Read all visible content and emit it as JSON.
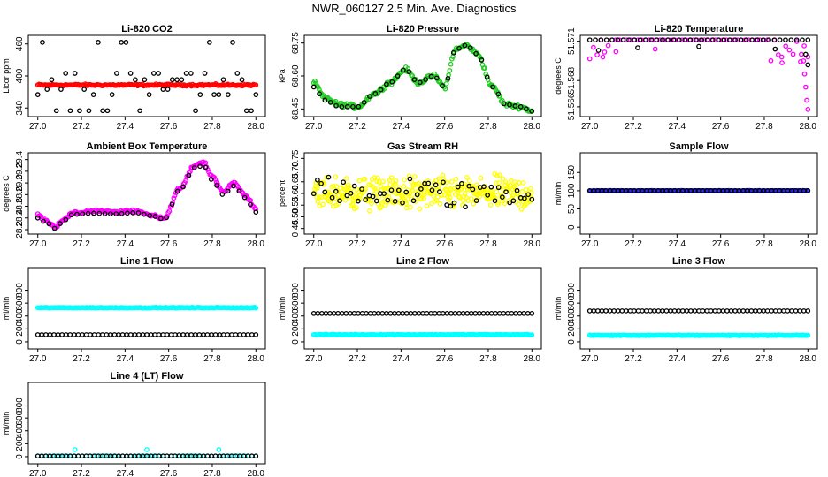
{
  "page": {
    "title": "NWR_060127  2.5 Min. Ave. Diagnostics"
  },
  "colors": {
    "red": "#ff0000",
    "green": "#22cc22",
    "magenta": "#ff00ff",
    "yellow": "#ffff00",
    "blue": "#1f1fff",
    "cyan": "#00ffff",
    "black": "#000000"
  },
  "chart_data": [
    {
      "id": "p1",
      "type": "scatter",
      "title": "Li-820 CO2",
      "ylabel": "Licor ppm",
      "xlim": [
        27.0,
        28.0
      ],
      "ylim": [
        330,
        470
      ],
      "xticks": [
        "27.0",
        "27.2",
        "27.4",
        "27.6",
        "27.8",
        "28.0"
      ],
      "yticks": [
        "340",
        "400",
        "460"
      ],
      "series": [
        {
          "name": "colored",
          "color": "#ff0000",
          "pattern": "flat",
          "y0": 383,
          "noise": 1.5
        },
        {
          "name": "black",
          "color": "#000000",
          "pattern": "co2scatter"
        }
      ]
    },
    {
      "id": "p2",
      "type": "scatter",
      "title": "Li-820 Pressure",
      "ylabel": "kPa",
      "xlim": [
        27.0,
        28.0
      ],
      "ylim": [
        68.43,
        68.77
      ],
      "xticks": [
        "27.0",
        "27.2",
        "27.4",
        "27.6",
        "27.8",
        "28.0"
      ],
      "yticks": [
        "68.45",
        "68.60",
        "68.75"
      ],
      "series": [
        {
          "name": "colored",
          "color": "#22cc22",
          "pattern": "curve",
          "knots": [
            [
              27.0,
              68.57
            ],
            [
              27.05,
              68.5
            ],
            [
              27.12,
              68.47
            ],
            [
              27.2,
              68.46
            ],
            [
              27.28,
              68.52
            ],
            [
              27.35,
              68.57
            ],
            [
              27.42,
              68.63
            ],
            [
              27.48,
              68.57
            ],
            [
              27.55,
              68.6
            ],
            [
              27.6,
              68.55
            ],
            [
              27.65,
              68.72
            ],
            [
              27.7,
              68.74
            ],
            [
              27.75,
              68.7
            ],
            [
              27.82,
              68.55
            ],
            [
              27.88,
              68.47
            ],
            [
              27.95,
              68.46
            ],
            [
              28.0,
              68.44
            ]
          ],
          "noise": 0.008
        },
        {
          "name": "black",
          "color": "#000000",
          "pattern": "curve-sparse",
          "knots": [
            [
              27.0,
              68.55
            ],
            [
              27.05,
              68.49
            ],
            [
              27.12,
              68.46
            ],
            [
              27.2,
              68.46
            ],
            [
              27.28,
              68.52
            ],
            [
              27.35,
              68.57
            ],
            [
              27.42,
              68.63
            ],
            [
              27.48,
              68.57
            ],
            [
              27.55,
              68.6
            ],
            [
              27.6,
              68.55
            ],
            [
              27.65,
              68.72
            ],
            [
              27.7,
              68.74
            ],
            [
              27.75,
              68.7
            ],
            [
              27.82,
              68.55
            ],
            [
              27.88,
              68.47
            ],
            [
              27.95,
              68.46
            ],
            [
              28.0,
              68.44
            ]
          ]
        }
      ]
    },
    {
      "id": "p3",
      "type": "scatter",
      "title": "Li-820 Temperature",
      "ylabel": "degrees C",
      "xlim": [
        27.0,
        28.0
      ],
      "ylim": [
        51.5655,
        51.5712
      ],
      "xticks": [
        "27.0",
        "27.2",
        "27.4",
        "27.6",
        "27.8",
        "28.0"
      ],
      "yticks": [
        "51.566",
        "51.568",
        "51.571"
      ],
      "series": [
        {
          "name": "colored",
          "color": "#ff00ff",
          "pattern": "temp-top"
        },
        {
          "name": "black",
          "color": "#000000",
          "pattern": "temp-top-black"
        }
      ]
    },
    {
      "id": "p4",
      "type": "scatter",
      "title": "Ambient Box Temperature",
      "ylabel": "degrees C",
      "xlim": [
        27.0,
        28.0
      ],
      "ylim": [
        28.18,
        29.46
      ],
      "xticks": [
        "27.0",
        "27.2",
        "27.4",
        "27.6",
        "27.8",
        "28.0"
      ],
      "yticks": [
        "28.2",
        "28.4",
        "28.6",
        "28.8",
        "29.0",
        "29.2",
        "29.4"
      ],
      "series": [
        {
          "name": "colored",
          "color": "#ff00ff",
          "pattern": "curve",
          "knots": [
            [
              27.0,
              28.45
            ],
            [
              27.04,
              28.35
            ],
            [
              27.08,
              28.25
            ],
            [
              27.12,
              28.38
            ],
            [
              27.16,
              28.48
            ],
            [
              27.25,
              28.52
            ],
            [
              27.35,
              28.5
            ],
            [
              27.45,
              28.52
            ],
            [
              27.52,
              28.45
            ],
            [
              27.58,
              28.4
            ],
            [
              27.65,
              28.9
            ],
            [
              27.72,
              29.3
            ],
            [
              27.76,
              29.36
            ],
            [
              27.8,
              29.1
            ],
            [
              27.85,
              28.85
            ],
            [
              27.9,
              29.0
            ],
            [
              27.95,
              28.8
            ],
            [
              28.0,
              28.55
            ]
          ],
          "noise": 0.02
        },
        {
          "name": "black",
          "color": "#000000",
          "pattern": "curve-sparse",
          "knots": [
            [
              27.0,
              28.4
            ],
            [
              27.04,
              28.32
            ],
            [
              27.08,
              28.22
            ],
            [
              27.12,
              28.36
            ],
            [
              27.16,
              28.46
            ],
            [
              27.25,
              28.48
            ],
            [
              27.35,
              28.47
            ],
            [
              27.45,
              28.49
            ],
            [
              27.52,
              28.44
            ],
            [
              27.58,
              28.38
            ],
            [
              27.65,
              28.88
            ],
            [
              27.72,
              29.26
            ],
            [
              27.76,
              29.3
            ],
            [
              27.8,
              29.05
            ],
            [
              27.85,
              28.8
            ],
            [
              27.9,
              28.95
            ],
            [
              27.95,
              28.75
            ],
            [
              28.0,
              28.5
            ]
          ]
        }
      ]
    },
    {
      "id": "p5",
      "type": "scatter",
      "title": "Gas Stream RH",
      "ylabel": "percent",
      "xlim": [
        27.0,
        28.0
      ],
      "ylim": [
        0.44,
        0.76
      ],
      "xticks": [
        "27.0",
        "27.2",
        "27.4",
        "27.6",
        "27.8",
        "28.0"
      ],
      "yticks": [
        "0.45",
        "0.50",
        "0.55",
        "0.60",
        "0.65",
        "0.70",
        "0.75"
      ],
      "series": [
        {
          "name": "colored",
          "color": "#ffff00",
          "pattern": "cloud",
          "y0": 0.6,
          "noise": 0.06
        },
        {
          "name": "black",
          "color": "#000000",
          "pattern": "cloud-sparse",
          "y0": 0.6,
          "noise": 0.06
        }
      ]
    },
    {
      "id": "p6",
      "type": "scatter",
      "title": "Sample Flow",
      "ylabel": "ml/min",
      "xlim": [
        27.0,
        28.0
      ],
      "ylim": [
        -10,
        195
      ],
      "xticks": [
        "27.0",
        "27.2",
        "27.4",
        "27.6",
        "27.8",
        "28.0"
      ],
      "yticks": [
        "0",
        "50",
        "100",
        "150"
      ],
      "series": [
        {
          "name": "colored",
          "color": "#1f1fff",
          "pattern": "flat",
          "y0": 100,
          "noise": 0.6
        },
        {
          "name": "black",
          "color": "#000000",
          "pattern": "flat-sparse",
          "y0": 100
        }
      ]
    },
    {
      "id": "p7",
      "type": "scatter",
      "title": "Line 1 Flow",
      "ylabel": "ml/min",
      "xlim": [
        27.0,
        28.0
      ],
      "ylim": [
        -60,
        1100
      ],
      "xticks": [
        "27.0",
        "27.2",
        "27.4",
        "27.6",
        "27.8",
        "28.0"
      ],
      "yticks": [
        "0",
        "200",
        "400",
        "600",
        "800"
      ],
      "series": [
        {
          "name": "colored",
          "color": "#00ffff",
          "pattern": "flat",
          "y0": 530,
          "noise": 5
        },
        {
          "name": "black",
          "color": "#000000",
          "pattern": "flat-sparse",
          "y0": 110
        }
      ]
    },
    {
      "id": "p8",
      "type": "scatter",
      "title": "Line 2 Flow",
      "ylabel": "ml/min",
      "xlim": [
        27.0,
        28.0
      ],
      "ylim": [
        -60,
        1100
      ],
      "xticks": [
        "27.0",
        "27.2",
        "27.4",
        "27.6",
        "27.8",
        "28.0"
      ],
      "yticks": [
        "0",
        "200",
        "400",
        "600",
        "800"
      ],
      "series": [
        {
          "name": "colored",
          "color": "#00ffff",
          "pattern": "flat",
          "y0": 110,
          "noise": 5
        },
        {
          "name": "black",
          "color": "#000000",
          "pattern": "flat-sparse",
          "y0": 440
        }
      ]
    },
    {
      "id": "p9",
      "type": "scatter",
      "title": "Line 3 Flow",
      "ylabel": "ml/min",
      "xlim": [
        27.0,
        28.0
      ],
      "ylim": [
        -60,
        1100
      ],
      "xticks": [
        "27.0",
        "27.2",
        "27.4",
        "27.6",
        "27.8",
        "28.0"
      ],
      "yticks": [
        "0",
        "200",
        "400",
        "600",
        "800"
      ],
      "series": [
        {
          "name": "colored",
          "color": "#00ffff",
          "pattern": "flat",
          "y0": 100,
          "noise": 5
        },
        {
          "name": "black",
          "color": "#000000",
          "pattern": "flat-sparse",
          "y0": 480
        }
      ]
    },
    {
      "id": "p10",
      "type": "scatter",
      "title": "Line 4 (LT) Flow",
      "ylabel": "ml/min",
      "xlim": [
        27.0,
        28.0
      ],
      "ylim": [
        -60,
        1100
      ],
      "xticks": [
        "27.0",
        "27.2",
        "27.4",
        "27.6",
        "27.8",
        "28.0"
      ],
      "yticks": [
        "0",
        "200",
        "400",
        "600",
        "800"
      ],
      "series": [
        {
          "name": "colored",
          "color": "#00ffff",
          "pattern": "spikes",
          "y0": 10,
          "spikes": [
            [
              27.17,
              110
            ],
            [
              27.5,
              110
            ],
            [
              27.83,
              110
            ]
          ]
        },
        {
          "name": "black",
          "color": "#000000",
          "pattern": "flat-sparse",
          "y0": 10
        }
      ]
    }
  ]
}
